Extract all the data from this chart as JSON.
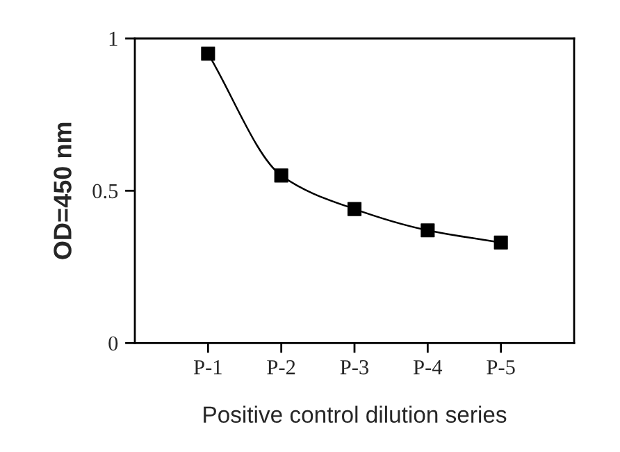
{
  "chart_data": {
    "type": "line",
    "xlabel": "Positive control dilution series",
    "ylabel": "OD=450 nm",
    "categories": [
      "P-1",
      "P-2",
      "P-3",
      "P-4",
      "P-5"
    ],
    "series": [
      {
        "color": "#000000",
        "values": [
          0.95,
          0.55,
          0.44,
          0.37,
          0.33
        ]
      }
    ],
    "ylim": [
      0,
      1
    ],
    "yticks": [
      0,
      0.5,
      1
    ],
    "marker": "square",
    "line_style": "solid",
    "grid": false
  }
}
